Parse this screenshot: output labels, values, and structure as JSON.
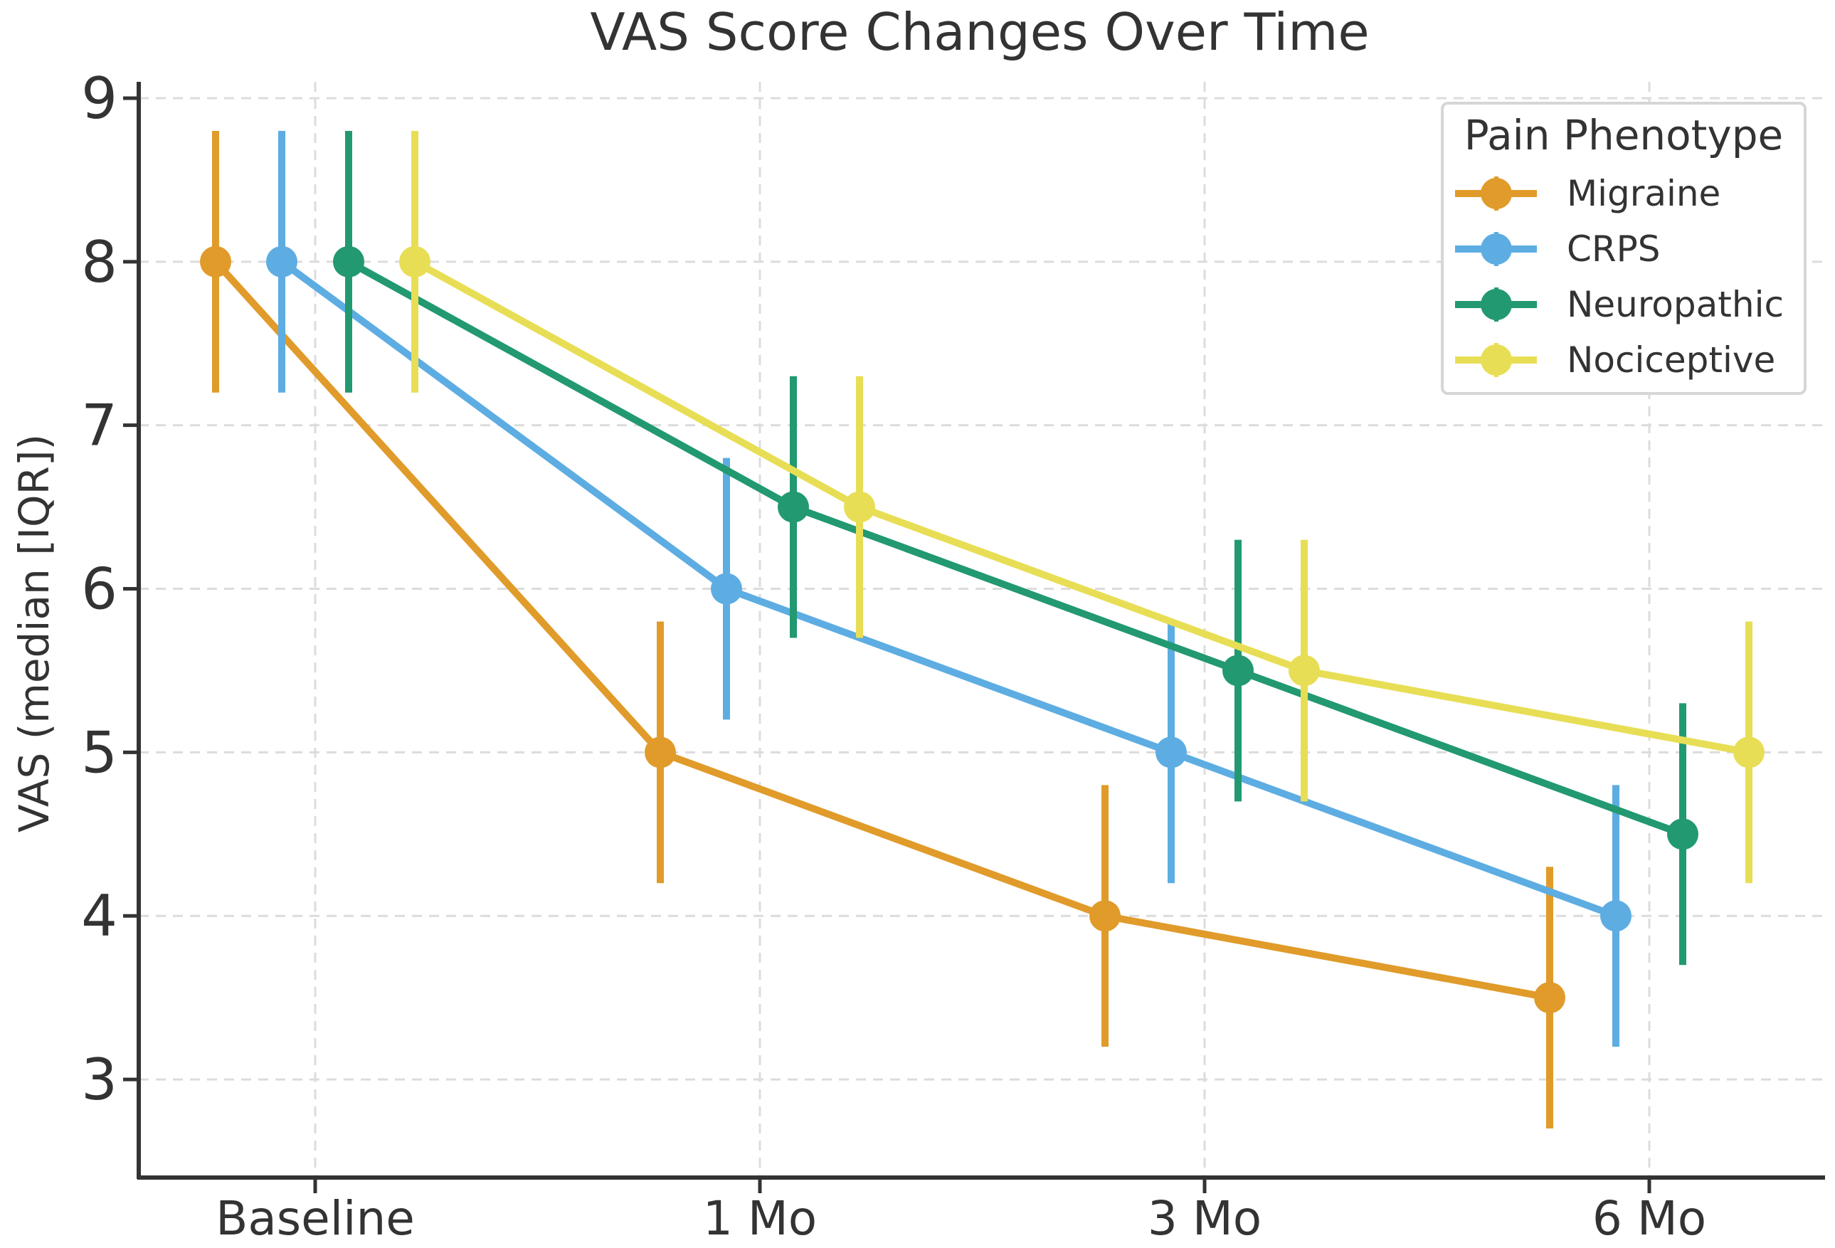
{
  "chart_data": {
    "type": "line",
    "title": "VAS Score Changes Over Time",
    "xlabel": "",
    "ylabel": "VAS (median [IQR])",
    "categories": [
      "Baseline",
      "1 Mo",
      "3 Mo",
      "6 Mo"
    ],
    "yticks": [
      "3",
      "4",
      "5",
      "6",
      "7",
      "8",
      "9"
    ],
    "ylim": [
      2.4,
      9.1
    ],
    "grid": true,
    "error_bars": "IQR",
    "legend": {
      "title": "Pain Phenotype",
      "position": "top-right"
    },
    "series": [
      {
        "name": "Migraine",
        "color": "#E09B2A",
        "values": [
          8.0,
          5.0,
          4.0,
          3.5
        ],
        "low": [
          7.2,
          4.2,
          3.2,
          2.7
        ],
        "high": [
          8.8,
          5.8,
          4.8,
          4.3
        ]
      },
      {
        "name": "CRPS",
        "color": "#5DADE2",
        "values": [
          8.0,
          6.0,
          5.0,
          4.0
        ],
        "low": [
          7.2,
          5.2,
          4.2,
          3.2
        ],
        "high": [
          8.8,
          6.8,
          5.8,
          4.8
        ]
      },
      {
        "name": "Neuropathic",
        "color": "#229970",
        "values": [
          8.0,
          6.5,
          5.5,
          4.5
        ],
        "low": [
          7.2,
          5.7,
          4.7,
          3.7
        ],
        "high": [
          8.8,
          7.3,
          6.3,
          5.3
        ]
      },
      {
        "name": "Nociceptive",
        "color": "#E8DE55",
        "values": [
          8.0,
          6.5,
          5.5,
          5.0
        ],
        "low": [
          7.2,
          5.7,
          4.7,
          4.2
        ],
        "high": [
          8.8,
          7.3,
          6.3,
          5.8
        ]
      }
    ]
  }
}
